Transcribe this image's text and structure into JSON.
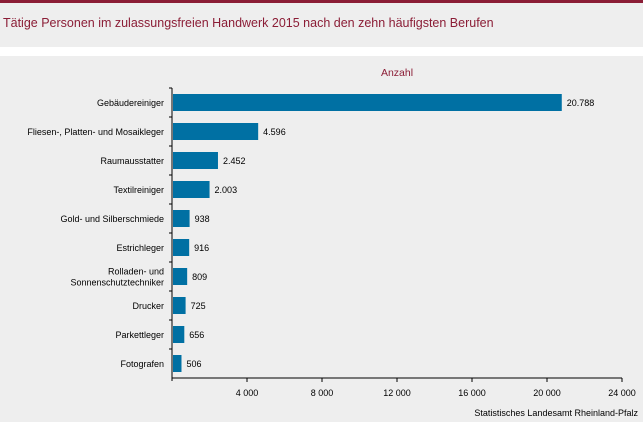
{
  "header": {
    "title": "Tätige Personen im zulassungsfreien Handwerk 2015 nach den zehn häufigsten Berufen"
  },
  "source": "Statistisches Landesamt Rheinland-Pfalz",
  "colors": {
    "accent": "#8b1d36",
    "bar": "#0070a3",
    "axis": "#000000"
  },
  "chart_data": {
    "type": "bar",
    "orientation": "horizontal",
    "title": "Tätige Personen im zulassungsfreien Handwerk 2015 nach den zehn häufigsten Berufen",
    "subtitle": "Anzahl",
    "xlabel": "",
    "ylabel": "",
    "categories": [
      "Gebäudereiniger",
      "Fliesen-, Platten- und Mosaikleger",
      "Raumausstatter",
      "Textilreiniger",
      "Gold- und Silberschmiede",
      "Estrichleger",
      "Rolladen- und\nSonnenschutztechniker",
      "Drucker",
      "Parkettleger",
      "Fotografen"
    ],
    "values": [
      20788,
      4596,
      2452,
      2003,
      938,
      916,
      809,
      725,
      656,
      506
    ],
    "value_labels": [
      "20.788",
      "4.596",
      "2.452",
      "2.003",
      "938",
      "916",
      "809",
      "725",
      "656",
      "506"
    ],
    "xlim": [
      0,
      24000
    ],
    "xticks": [
      4000,
      8000,
      12000,
      16000,
      20000,
      24000
    ],
    "xtick_labels": [
      "4 000",
      "8 000",
      "12 000",
      "16 000",
      "20 000",
      "24 000"
    ],
    "grid": false,
    "legend": "none"
  }
}
